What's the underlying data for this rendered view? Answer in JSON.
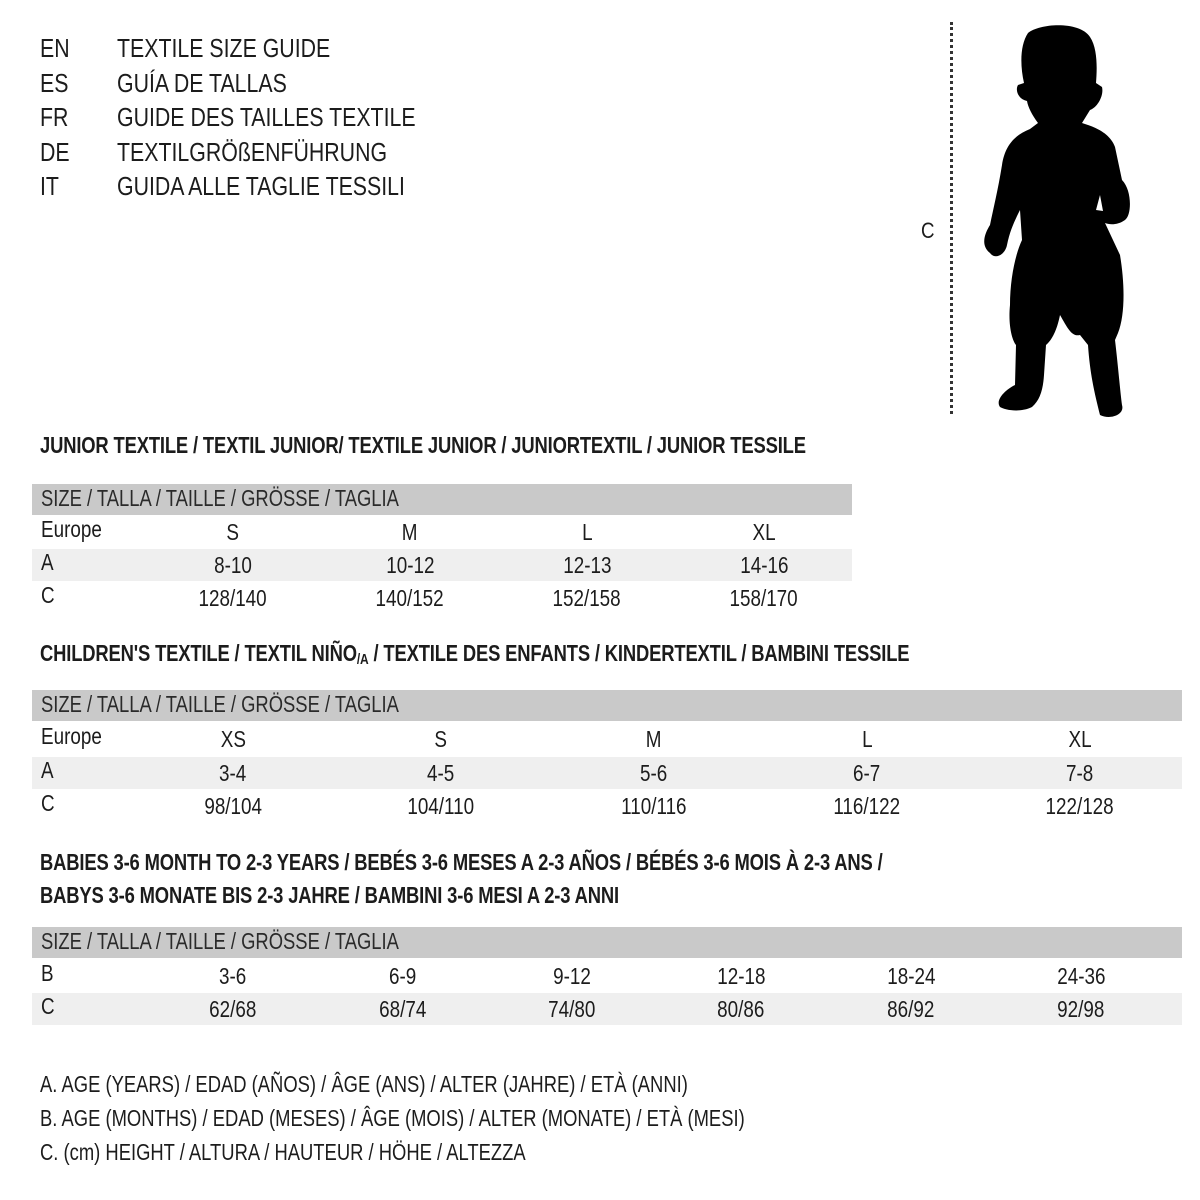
{
  "languages": [
    {
      "code": "EN",
      "title": "TEXTILE SIZE GUIDE"
    },
    {
      "code": "ES",
      "title": "GUÍA DE TALLAS"
    },
    {
      "code": "FR",
      "title": "GUIDE DES TAILLES TEXTILE"
    },
    {
      "code": "DE",
      "title": "TEXTILGRÖßENFÜHRUNG"
    },
    {
      "code": "IT",
      "title": "GUIDA ALLE TAGLIE TESSILI"
    }
  ],
  "figure": {
    "label": "C",
    "icon": "child-silhouette"
  },
  "colors": {
    "header_bg": "#c9c9c9",
    "shade_bg": "#efefef",
    "text": "#1c1c1c"
  },
  "junior": {
    "title": "JUNIOR TEXTILE / TEXTIL JUNIOR/ TEXTILE JUNIOR / JUNIORTEXTIL / JUNIOR TESSILE",
    "header": "SIZE / TALLA / TAILLE / GRÖSSE / TAGLIA",
    "rows": [
      {
        "label": "Europe",
        "values": [
          "S",
          "M",
          "L",
          "XL"
        ]
      },
      {
        "label": "A",
        "values": [
          "8-10",
          "10-12",
          "12-13",
          "14-16"
        ]
      },
      {
        "label": "C",
        "values": [
          "128/140",
          "140/152",
          "152/158",
          "158/170"
        ]
      }
    ]
  },
  "children": {
    "title_a": "CHILDREN'S TEXTILE / TEXTIL NIÑO",
    "title_sub": "/A",
    "title_b": " / TEXTILE DES ENFANTS / KINDERTEXTIL / BAMBINI TESSILE",
    "header": "SIZE / TALLA / TAILLE / GRÖSSE / TAGLIA",
    "rows": [
      {
        "label": "Europe",
        "values": [
          "XS",
          "S",
          "M",
          "L",
          "XL"
        ]
      },
      {
        "label": "A",
        "values": [
          "3-4",
          "4-5",
          "5-6",
          "6-7",
          "7-8"
        ]
      },
      {
        "label": "C",
        "values": [
          "98/104",
          "104/110",
          "110/116",
          "116/122",
          "122/128"
        ]
      }
    ]
  },
  "babies": {
    "title_line1": "BABIES 3-6 MONTH TO 2-3 YEARS / BEBÉS 3-6 MESES A 2-3 AÑOS / BÉBÉS 3-6 MOIS À 2-3 ANS /",
    "title_line2": "BABYS 3-6 MONATE BIS 2-3 JAHRE / BAMBINI 3-6 MESI A 2-3 ANNI",
    "header": "SIZE / TALLA / TAILLE / GRÖSSE / TAGLIA",
    "rows": [
      {
        "label": "B",
        "values": [
          "3-6",
          "6-9",
          "9-12",
          "12-18",
          "18-24",
          "24-36"
        ]
      },
      {
        "label": "C",
        "values": [
          "62/68",
          "68/74",
          "74/80",
          "80/86",
          "86/92",
          "92/98"
        ]
      }
    ]
  },
  "legend": [
    "A. AGE (YEARS) / EDAD (AÑOS) / ÂGE (ANS) / ALTER (JAHRE) / ETÀ (ANNI)",
    "B. AGE (MONTHS) / EDAD (MESES) / ÂGE (MOIS) / ALTER (MONATE) / ETÀ (MESI)",
    "C. (cm) HEIGHT / ALTURA / HAUTEUR / HÖHE / ALTEZZA"
  ]
}
